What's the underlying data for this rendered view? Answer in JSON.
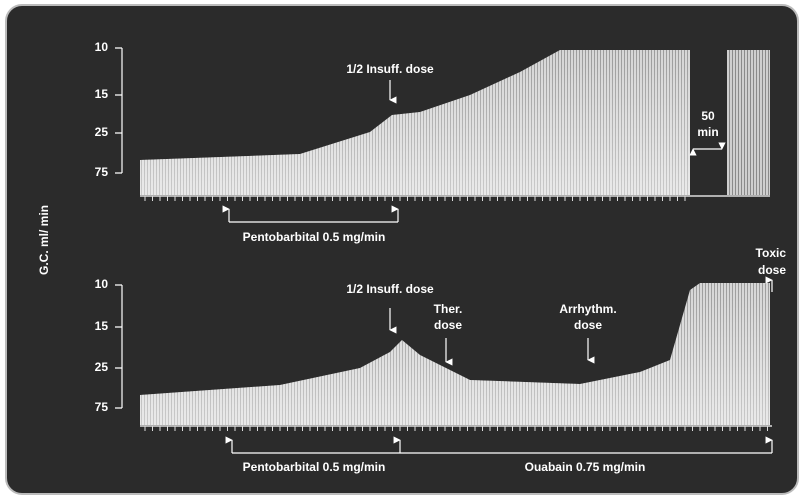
{
  "header": {
    "y_axis_label": "G.C. ml/ min"
  },
  "panels": [
    {
      "yticks": [
        "10",
        "15",
        "25",
        "75"
      ],
      "annotations": {
        "half_insuff": "1/2 Insuff. dose",
        "gap": [
          "50",
          "min"
        ]
      },
      "infusions": [
        "Pentobarbital 0.5 mg/min"
      ]
    },
    {
      "yticks": [
        "10",
        "15",
        "25",
        "75"
      ],
      "annotations": {
        "toxic": [
          "Toxic",
          "dose"
        ],
        "half_insuff": "1/2 Insuff. dose",
        "ther": [
          "Ther.",
          "dose"
        ],
        "arrhythm": [
          "Arrhythm.",
          "dose"
        ]
      },
      "infusions": [
        "Pentobarbital 0.5 mg/min",
        "Ouabain 0.75 mg/min"
      ]
    }
  ]
}
